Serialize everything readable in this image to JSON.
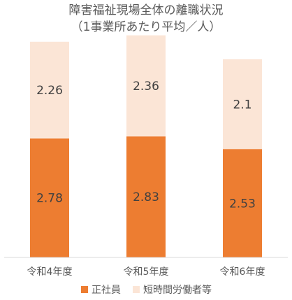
{
  "chart_data": {
    "type": "bar",
    "stacked": true,
    "title": "障害福祉現場全体の離職状況",
    "subtitle": "（1事業所あたり平均／人）",
    "categories": [
      "令和4年度",
      "令和5年度",
      "令和6年度"
    ],
    "series": [
      {
        "name": "正社員",
        "values": [
          2.78,
          2.83,
          2.53
        ],
        "color": "#ed7d31"
      },
      {
        "name": "短時間労働者等",
        "values": [
          2.26,
          2.36,
          2.1
        ],
        "color": "#fbe5d6"
      }
    ],
    "value_labels": [
      [
        "2.78",
        "2.83",
        "2.53"
      ],
      [
        "2.26",
        "2.36",
        "2.1"
      ]
    ],
    "ylim": [
      0,
      5.2
    ],
    "grid": false,
    "legend_position": "bottom",
    "xlabel": "",
    "ylabel": ""
  }
}
